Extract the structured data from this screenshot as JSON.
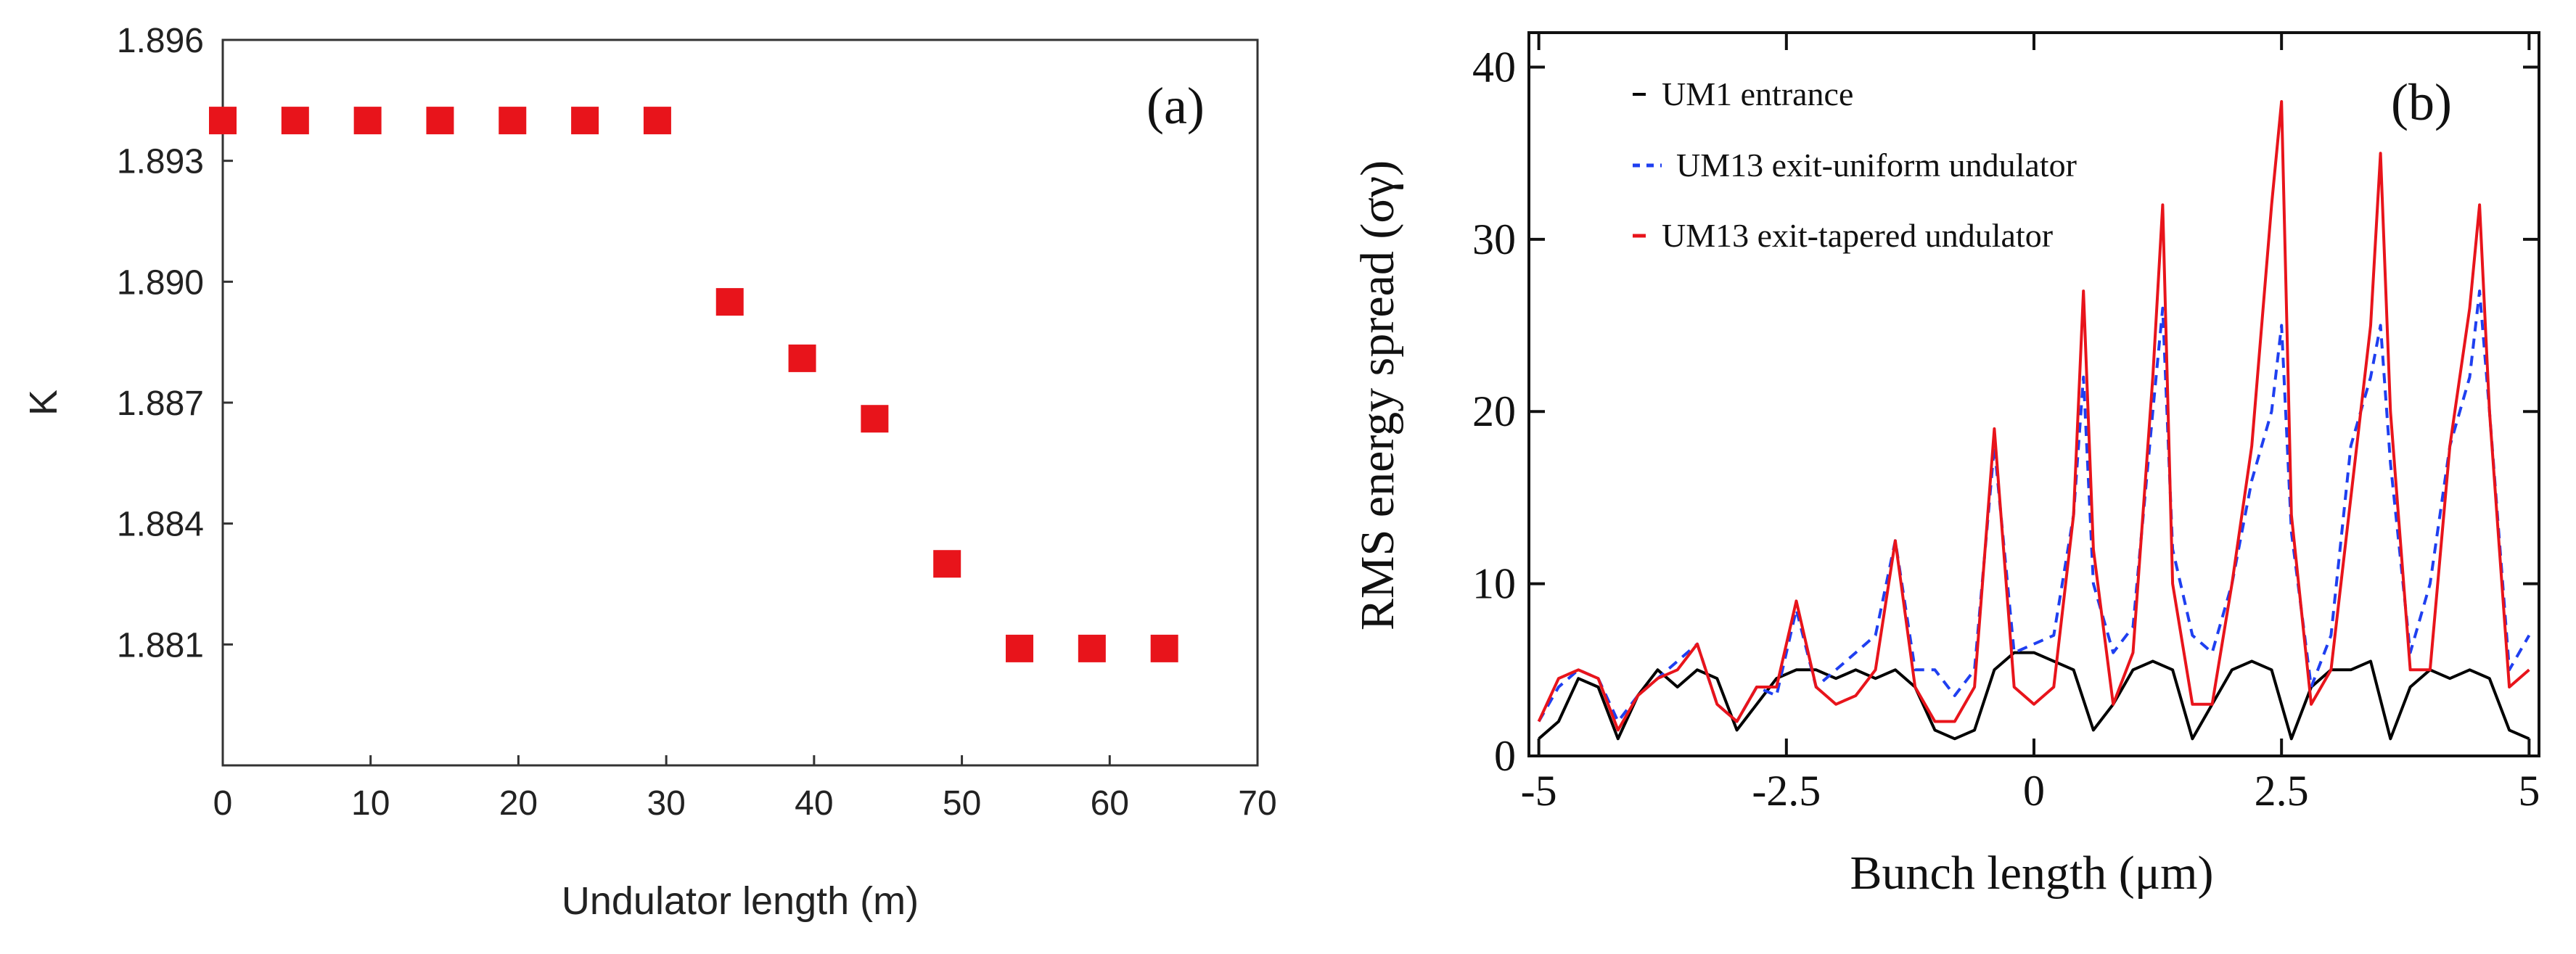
{
  "chart_data": [
    {
      "type": "scatter",
      "panel_label": "(a)",
      "xlabel": "Undulator length (m)",
      "ylabel": "K",
      "xlim": [
        0,
        70
      ],
      "ylim": [
        1.878,
        1.896
      ],
      "x_ticks": [
        0,
        10,
        20,
        30,
        40,
        50,
        60,
        70
      ],
      "y_ticks": [
        1.881,
        1.884,
        1.887,
        1.89,
        1.893,
        1.896
      ],
      "y_tick_labels": [
        "1.881",
        "1.884",
        "1.887",
        "1.890",
        "1.893",
        "1.896"
      ],
      "marker_color": "#e8141b",
      "series": [
        {
          "name": "K",
          "x": [
            0,
            4.9,
            9.8,
            14.7,
            19.6,
            24.5,
            29.4,
            34.3,
            39.2,
            44.1,
            49,
            53.9,
            58.8,
            63.7
          ],
          "y": [
            1.894,
            1.894,
            1.894,
            1.894,
            1.894,
            1.894,
            1.894,
            1.8895,
            1.8881,
            1.8866,
            1.883,
            1.8809,
            1.8809,
            1.8809
          ]
        }
      ]
    },
    {
      "type": "line",
      "panel_label": "(b)",
      "xlabel": "Bunch length (μm)",
      "ylabel": "RMS energy spread (σγ)",
      "xlim": [
        -5.1,
        5.1
      ],
      "ylim": [
        0,
        42
      ],
      "x_ticks": [
        -5,
        -2.5,
        0,
        2.5,
        5
      ],
      "x_tick_labels": [
        "-5",
        "-2.5",
        "0",
        "2.5",
        "5"
      ],
      "y_ticks": [
        0,
        10,
        20,
        30,
        40
      ],
      "y_tick_labels": [
        "0",
        "10",
        "20",
        "30",
        "40"
      ],
      "legend_position": "top-left",
      "series": [
        {
          "name": "UM1 entrance",
          "color": "#000000",
          "style": "solid",
          "x": [
            -5.0,
            -4.8,
            -4.6,
            -4.4,
            -4.2,
            -4.0,
            -3.8,
            -3.6,
            -3.4,
            -3.2,
            -3.0,
            -2.8,
            -2.6,
            -2.4,
            -2.2,
            -2.0,
            -1.8,
            -1.6,
            -1.4,
            -1.2,
            -1.0,
            -0.8,
            -0.6,
            -0.4,
            -0.2,
            0.0,
            0.2,
            0.4,
            0.6,
            0.8,
            1.0,
            1.2,
            1.4,
            1.6,
            1.8,
            2.0,
            2.2,
            2.4,
            2.6,
            2.8,
            3.0,
            3.2,
            3.4,
            3.6,
            3.8,
            4.0,
            4.2,
            4.4,
            4.6,
            4.8,
            5.0
          ],
          "y": [
            1,
            2,
            4.5,
            4,
            1,
            3.5,
            5,
            4,
            5,
            4.5,
            1.5,
            3,
            4.5,
            5,
            5,
            4.5,
            5,
            4.5,
            5,
            4,
            1.5,
            1,
            1.5,
            5,
            6,
            6,
            5.5,
            5,
            1.5,
            3,
            5,
            5.5,
            5,
            1,
            3,
            5,
            5.5,
            5,
            1,
            4,
            5,
            5,
            5.5,
            1,
            4,
            5,
            4.5,
            5,
            4.5,
            1.5,
            1
          ]
        },
        {
          "name": "UM13 exit-uniform undulator",
          "color": "#1f3ff0",
          "style": "dashed",
          "x": [
            -5.0,
            -4.8,
            -4.6,
            -4.4,
            -4.2,
            -4.0,
            -3.8,
            -3.6,
            -3.4,
            -3.2,
            -3.0,
            -2.8,
            -2.6,
            -2.4,
            -2.2,
            -2.0,
            -1.8,
            -1.6,
            -1.4,
            -1.2,
            -1.0,
            -0.8,
            -0.6,
            -0.4,
            -0.2,
            0.0,
            0.2,
            0.4,
            0.5,
            0.6,
            0.8,
            1.0,
            1.2,
            1.3,
            1.4,
            1.6,
            1.8,
            2.0,
            2.2,
            2.4,
            2.5,
            2.6,
            2.8,
            3.0,
            3.2,
            3.4,
            3.5,
            3.6,
            3.8,
            4.0,
            4.2,
            4.4,
            4.5,
            4.6,
            4.8,
            5.0
          ],
          "y": [
            2,
            4,
            5,
            4.5,
            2,
            3.5,
            4.5,
            5.5,
            6.5,
            3,
            2,
            4,
            3.5,
            8.5,
            4,
            5,
            6,
            7,
            12.5,
            5,
            5,
            3.5,
            5,
            18,
            6,
            6.5,
            7,
            14,
            22,
            10,
            6,
            7.5,
            20,
            26,
            12,
            7,
            6,
            10,
            16,
            20,
            25,
            13,
            4,
            7,
            18,
            22,
            25,
            17,
            6,
            10,
            18,
            22,
            27,
            20,
            5,
            7
          ]
        },
        {
          "name": "UM13 exit-tapered undulator",
          "color": "#e8141b",
          "style": "solid",
          "x": [
            -5.0,
            -4.8,
            -4.6,
            -4.4,
            -4.2,
            -4.0,
            -3.8,
            -3.6,
            -3.4,
            -3.2,
            -3.0,
            -2.8,
            -2.6,
            -2.4,
            -2.2,
            -2.0,
            -1.8,
            -1.6,
            -1.4,
            -1.2,
            -1.0,
            -0.8,
            -0.6,
            -0.4,
            -0.2,
            0.0,
            0.2,
            0.4,
            0.5,
            0.6,
            0.8,
            1.0,
            1.2,
            1.3,
            1.4,
            1.6,
            1.8,
            2.0,
            2.2,
            2.4,
            2.5,
            2.6,
            2.8,
            3.0,
            3.2,
            3.4,
            3.5,
            3.6,
            3.8,
            4.0,
            4.2,
            4.4,
            4.5,
            4.6,
            4.8,
            5.0
          ],
          "y": [
            2,
            4.5,
            5,
            4.5,
            1.5,
            3.5,
            4.5,
            5,
            6.5,
            3,
            2,
            4,
            4,
            9,
            4,
            3,
            3.5,
            5,
            12.5,
            4,
            2,
            2,
            4,
            19,
            4,
            3,
            4,
            14,
            27,
            12,
            3,
            6,
            22,
            32,
            10,
            3,
            3,
            10,
            18,
            32,
            38,
            14,
            3,
            5,
            15,
            25,
            35,
            20,
            5,
            5,
            18,
            26,
            32,
            20,
            4,
            5
          ]
        }
      ]
    }
  ]
}
